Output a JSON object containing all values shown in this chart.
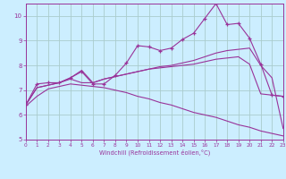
{
  "xlabel": "Windchill (Refroidissement éolien,°C)",
  "bg_color": "#cceeff",
  "grid_color": "#aacccc",
  "line_color": "#993399",
  "xmin": 0,
  "xmax": 23,
  "ymin": 5,
  "ymax": 10.5,
  "yticks": [
    5,
    6,
    7,
    8,
    9,
    10
  ],
  "xticks": [
    0,
    1,
    2,
    3,
    4,
    5,
    6,
    7,
    8,
    9,
    10,
    11,
    12,
    13,
    14,
    15,
    16,
    17,
    18,
    19,
    20,
    21,
    22,
    23
  ],
  "series": [
    {
      "x": [
        0,
        1,
        2,
        3,
        4,
        5,
        6,
        7,
        8,
        9,
        10,
        11,
        12,
        13,
        14,
        15,
        16,
        17,
        18,
        19,
        20,
        21,
        22,
        23
      ],
      "y": [
        6.4,
        7.25,
        7.3,
        7.3,
        7.5,
        7.75,
        7.25,
        7.25,
        7.6,
        8.1,
        8.8,
        8.75,
        8.6,
        8.7,
        9.05,
        9.3,
        9.9,
        10.5,
        9.65,
        9.7,
        9.1,
        8.05,
        6.8,
        6.75
      ],
      "has_markers": true
    },
    {
      "x": [
        0,
        1,
        2,
        3,
        4,
        5,
        6,
        7,
        8,
        9,
        10,
        11,
        12,
        13,
        14,
        15,
        16,
        17,
        18,
        19,
        20,
        21,
        22,
        23
      ],
      "y": [
        6.4,
        7.1,
        7.2,
        7.3,
        7.45,
        7.3,
        7.3,
        7.45,
        7.55,
        7.65,
        7.75,
        7.85,
        7.9,
        7.95,
        8.0,
        8.05,
        8.15,
        8.25,
        8.3,
        8.35,
        8.05,
        6.85,
        6.8,
        6.75
      ],
      "has_markers": false
    },
    {
      "x": [
        0,
        1,
        2,
        3,
        4,
        5,
        6,
        7,
        8,
        9,
        10,
        11,
        12,
        13,
        14,
        15,
        16,
        17,
        18,
        19,
        20,
        21,
        22,
        23
      ],
      "y": [
        6.4,
        7.1,
        7.2,
        7.3,
        7.5,
        7.8,
        7.3,
        7.45,
        7.55,
        7.65,
        7.75,
        7.85,
        7.95,
        8.0,
        8.1,
        8.2,
        8.35,
        8.5,
        8.6,
        8.65,
        8.7,
        8.0,
        7.5,
        5.45
      ],
      "has_markers": false
    },
    {
      "x": [
        0,
        1,
        2,
        3,
        4,
        5,
        6,
        7,
        8,
        9,
        10,
        11,
        12,
        13,
        14,
        15,
        16,
        17,
        18,
        19,
        20,
        21,
        22,
        23
      ],
      "y": [
        6.35,
        6.75,
        7.05,
        7.15,
        7.25,
        7.2,
        7.15,
        7.1,
        7.0,
        6.9,
        6.75,
        6.65,
        6.5,
        6.4,
        6.25,
        6.1,
        6.0,
        5.9,
        5.75,
        5.6,
        5.5,
        5.35,
        5.25,
        5.15
      ],
      "has_markers": false
    }
  ]
}
